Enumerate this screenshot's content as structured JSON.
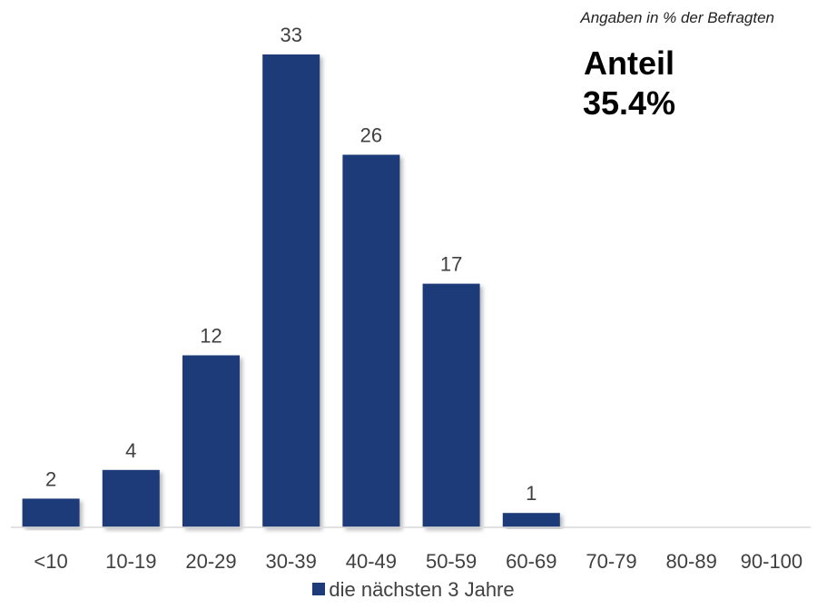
{
  "chart_data": {
    "type": "bar",
    "categories": [
      "<10",
      "10-19",
      "20-29",
      "30-39",
      "40-49",
      "50-59",
      "60-69",
      "70-79",
      "80-89",
      "90-100"
    ],
    "series": [
      {
        "name": "die nächsten 3 Jahre",
        "values": [
          2,
          4,
          12,
          33,
          26,
          17,
          1,
          0,
          0,
          0
        ],
        "color": "#1f3a78"
      }
    ],
    "data_labels": [
      "2",
      "4",
      "12",
      "33",
      "26",
      "17",
      "1",
      "",
      "",
      ""
    ],
    "note": "Angaben in % der Befragten",
    "highlight": {
      "line1": "Anteil",
      "line2": "35.4%"
    },
    "legend_position": "bottom",
    "ylim": [
      0,
      35
    ],
    "grid": false,
    "axis_color": "#d9d9d9"
  }
}
